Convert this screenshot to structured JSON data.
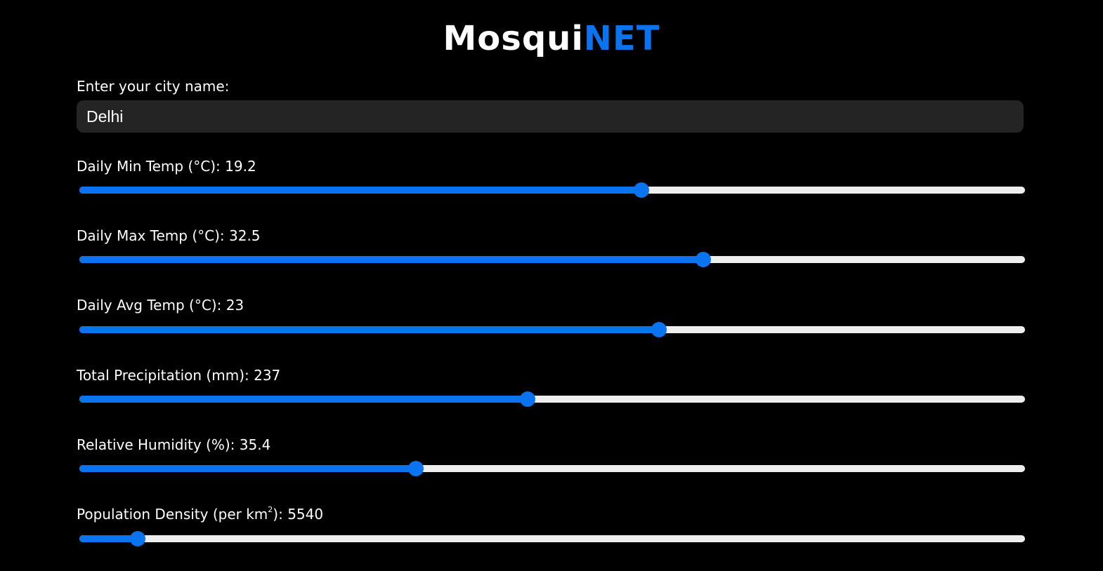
{
  "header": {
    "title_plain": "Mosqui",
    "title_accent": "NET"
  },
  "city": {
    "label": "Enter your city name:",
    "value": "Delhi"
  },
  "sliders": [
    {
      "label": "Daily Min Temp (°C): ",
      "value": "19.2",
      "fill_fraction": 0.594
    },
    {
      "label": "Daily Max Temp (°C): ",
      "value": "32.5",
      "fill_fraction": 0.66
    },
    {
      "label": "Daily Avg Temp (°C): ",
      "value": "23",
      "fill_fraction": 0.613
    },
    {
      "label": "Total Precipitation (mm): ",
      "value": "237",
      "fill_fraction": 0.474
    },
    {
      "label": "Relative Humidity (%): ",
      "value": "35.4",
      "fill_fraction": 0.356
    },
    {
      "label_before": "Population Density (per km",
      "label_sup": "2",
      "label_after": "): ",
      "value": "5540",
      "fill_fraction": 0.062
    }
  ],
  "colors": {
    "accent": "#0a74f0",
    "track": "#eeeeee",
    "background": "#000000",
    "input_bg": "#242424"
  }
}
